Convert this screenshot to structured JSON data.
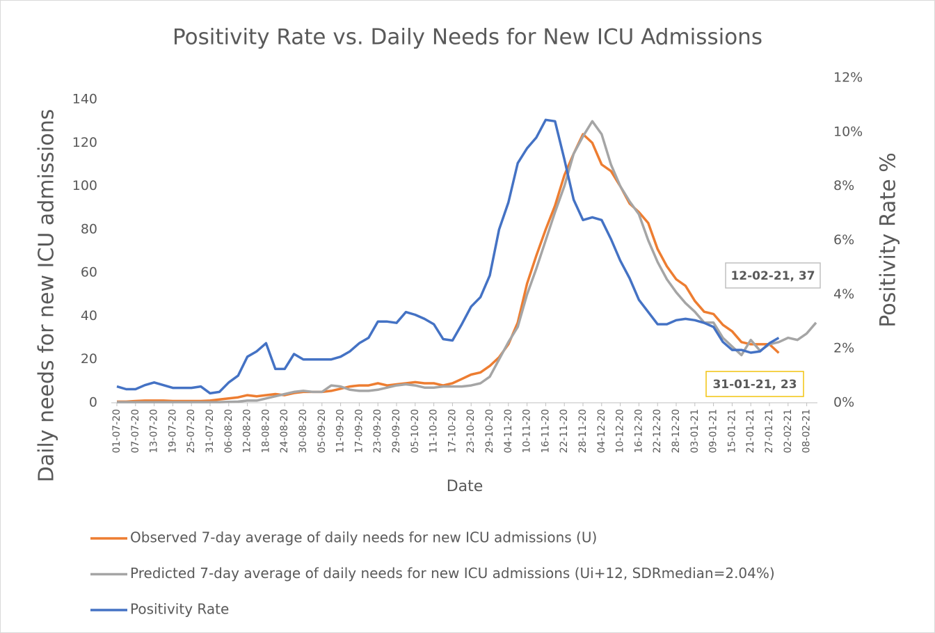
{
  "chart_data": {
    "type": "line",
    "title": "Positivity Rate vs. Daily Needs for New ICU Admissions",
    "x_label": "Date",
    "y_label": "Daily needs for new ICU admissions",
    "y2_label": "Positivity Rate %",
    "categories": [
      "01-07-20",
      null,
      "07-07-20",
      null,
      "13-07-20",
      null,
      "19-07-20",
      null,
      "25-07-20",
      null,
      "31-07-20",
      null,
      "06-08-20",
      null,
      "12-08-20",
      null,
      "18-08-20",
      null,
      "24-08-20",
      null,
      "30-08-20",
      null,
      "05-09-20",
      null,
      "11-09-20",
      null,
      "17-09-20",
      null,
      "23-09-20",
      null,
      "29-09-20",
      null,
      "05-10-20",
      null,
      "11-10-20",
      null,
      "17-10-20",
      null,
      "23-10-20",
      null,
      "29-10-20",
      null,
      "04-11-20",
      null,
      "10-11-20",
      null,
      "16-11-20",
      null,
      "22-11-20",
      null,
      "28-11-20",
      null,
      "04-12-20",
      null,
      "10-12-20",
      null,
      "16-12-20",
      null,
      "22-12-20",
      null,
      "28-12-20",
      null,
      "03-01-21",
      null,
      "09-01-21",
      null,
      "15-01-21",
      null,
      "21-01-21",
      null,
      "27-01-21",
      null,
      "02-02-21",
      null,
      "08-02-21",
      null
    ],
    "series": [
      {
        "name": "Observed 7-day average of daily needs for new ICU admissions (U)",
        "color": "#ed7d31",
        "values": [
          0.5,
          0.5,
          0.8,
          1,
          1,
          1,
          0.8,
          0.8,
          0.8,
          0.8,
          1,
          1.5,
          2,
          2.5,
          3.5,
          3,
          3.5,
          4,
          3.5,
          4.5,
          5,
          5,
          5,
          5.5,
          6.5,
          7.5,
          8,
          8,
          9,
          8,
          8.5,
          9,
          9.5,
          9,
          9,
          8,
          9,
          11,
          13,
          14,
          17,
          21,
          27,
          37,
          55,
          68,
          80,
          91,
          105,
          115,
          124,
          120,
          110,
          107,
          100,
          92,
          88,
          83,
          71,
          63,
          57,
          54,
          47,
          42,
          41,
          36,
          33,
          28,
          27,
          27,
          27,
          23,
          null,
          null,
          null,
          null
        ]
      },
      {
        "name": "Predicted 7-day average of daily needs for new ICU admissions (Ui+12, SDRmedian=2.04%)",
        "color": "#a5a5a5",
        "values": [
          0.3,
          0.3,
          0.3,
          0.3,
          0.3,
          0.3,
          0.3,
          0.3,
          0.3,
          0.3,
          0.3,
          0.3,
          0.4,
          0.5,
          1,
          1,
          2,
          3,
          4,
          5,
          5.5,
          5,
          5,
          8,
          7.5,
          6,
          5.5,
          5.5,
          6,
          7,
          8,
          8.5,
          8,
          7,
          7,
          7.5,
          7.5,
          7.5,
          8,
          9,
          12,
          20,
          28,
          35,
          50,
          62,
          75,
          88,
          100,
          115,
          123,
          130,
          124,
          110,
          100,
          93,
          87,
          75,
          65,
          57,
          51,
          46,
          42,
          37,
          37,
          30,
          26,
          22,
          29,
          24,
          27,
          28,
          30,
          29,
          32,
          37
        ]
      },
      {
        "name": "Positivity Rate",
        "color": "#4472c4",
        "axis": "y2",
        "values": [
          0.6,
          0.5,
          0.5,
          0.65,
          0.75,
          0.65,
          0.55,
          0.55,
          0.55,
          0.6,
          0.35,
          0.4,
          0.75,
          1.0,
          1.7,
          1.9,
          2.2,
          1.25,
          1.25,
          1.8,
          1.6,
          1.6,
          1.6,
          1.6,
          1.7,
          1.9,
          2.2,
          2.4,
          3.0,
          3.0,
          2.95,
          3.35,
          3.25,
          3.1,
          2.9,
          2.35,
          2.3,
          2.9,
          3.55,
          3.9,
          4.7,
          6.4,
          7.4,
          8.85,
          9.4,
          9.8,
          10.45,
          10.4,
          9.0,
          7.5,
          6.75,
          6.85,
          6.75,
          6.05,
          5.25,
          4.6,
          3.8,
          3.35,
          2.9,
          2.9,
          3.05,
          3.1,
          3.05,
          2.95,
          2.8,
          2.25,
          1.95,
          1.95,
          1.85,
          1.9,
          2.2,
          2.4,
          null,
          null,
          null,
          null
        ]
      }
    ],
    "ylim": [
      0,
      150
    ],
    "yticks": [
      0,
      20,
      40,
      60,
      80,
      100,
      120,
      140
    ],
    "y2lim": [
      0,
      12
    ],
    "y2ticks": [
      {
        "value": 0,
        "label": "0%"
      },
      {
        "value": 2,
        "label": "2%"
      },
      {
        "value": 4,
        "label": "4%"
      },
      {
        "value": 6,
        "label": "6%"
      },
      {
        "value": 8,
        "label": "8%"
      },
      {
        "value": 10,
        "label": "10%"
      },
      {
        "value": 12,
        "label": "12%"
      }
    ],
    "grid": false,
    "legend": "bottom",
    "annotations": [
      {
        "text": "12-02-21, 37"
      },
      {
        "text": "31-01-21, 23"
      }
    ]
  }
}
